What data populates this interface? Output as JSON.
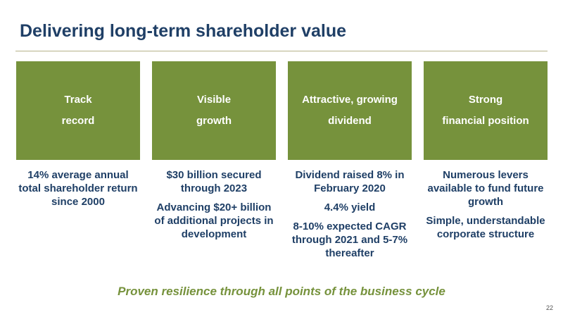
{
  "header": {
    "title": "Delivering long-term shareholder value"
  },
  "columns": [
    {
      "heading": [
        "Track",
        "record"
      ],
      "points": [
        "14% average annual total shareholder return since 2000"
      ]
    },
    {
      "heading": [
        "Visible",
        "growth"
      ],
      "points": [
        "$30 billion secured through 2023",
        "Advancing $20+ billion of additional projects in development"
      ]
    },
    {
      "heading": [
        "Attractive, growing",
        "dividend"
      ],
      "points": [
        "Dividend raised 8% in February 2020",
        "4.4% yield",
        "8-10% expected CAGR through 2021 and 5-7% thereafter"
      ]
    },
    {
      "heading": [
        "Strong",
        "financial position"
      ],
      "points": [
        "Numerous levers available to fund future growth",
        "Simple, understandable corporate structure"
      ]
    }
  ],
  "footer": {
    "tagline": "Proven resilience through all points of the business cycle",
    "page_number": "22"
  }
}
